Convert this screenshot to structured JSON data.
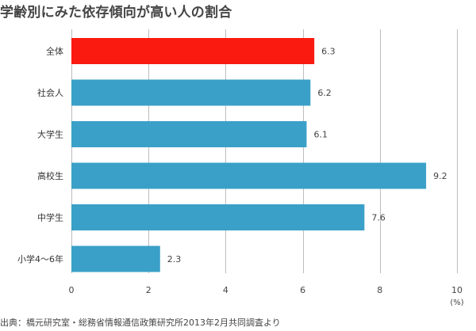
{
  "title": "学齢別にみた依存傾向が高い人の割合",
  "source": "出典：橋元研究室・総務省情報通信政策研究所2013年2月共同調査より",
  "chart_data": {
    "type": "bar",
    "orientation": "horizontal",
    "categories": [
      "全体",
      "社会人",
      "大学生",
      "高校生",
      "中学生",
      "小学4〜6年"
    ],
    "values": [
      6.3,
      6.2,
      6.1,
      9.2,
      7.6,
      2.3
    ],
    "data_labels": [
      "6.3",
      "6.2",
      "6.1",
      "9.2",
      "7.6",
      "2.3"
    ],
    "xlabel": "(%)",
    "ylabel": "",
    "xlim": [
      0,
      10
    ],
    "xticks": [
      0,
      2,
      4,
      6,
      8,
      10
    ],
    "grid": true,
    "colors": {
      "highlight": "#fa1a10",
      "default": "#3aa0c8",
      "grid": "#bdbdbd"
    },
    "highlight_index": 0
  }
}
